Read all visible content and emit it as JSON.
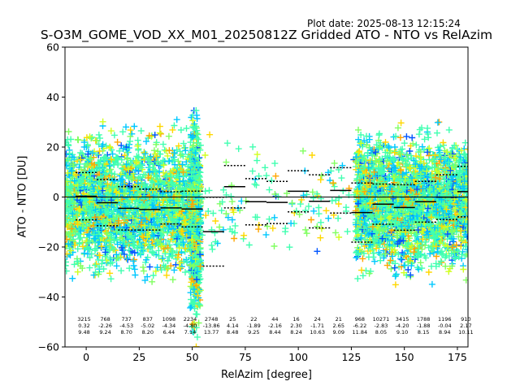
{
  "header": {
    "plot_date": "Plot date: 2025-08-13 12:15:24",
    "title": "S-O3M_GOME_VOD_XX_M01_20250812Z Gridded ATO - NTO vs RelAzim"
  },
  "chart_data": {
    "type": "scatter",
    "title": "S-O3M_GOME_VOD_XX_M01_20250812Z Gridded ATO - NTO vs RelAzim",
    "xlabel": "RelAzim [degree]",
    "ylabel": "ATO - NTO [DU]",
    "xlim": [
      -10,
      180
    ],
    "ylim": [
      -60,
      60
    ],
    "xticks": [
      0,
      25,
      50,
      75,
      100,
      125,
      150,
      175
    ],
    "yticks": [
      -60,
      -40,
      -20,
      0,
      20,
      40,
      60
    ],
    "grid": false,
    "legend": "none",
    "marker": "plus",
    "point_colors": [
      "#0055ff",
      "#00c8ff",
      "#40ffb0",
      "#80ff60",
      "#d0ff20",
      "#ffd700",
      "#ffa500"
    ],
    "bins": [
      {
        "x": 0,
        "n": "3215",
        "mean": "0.32",
        "std": "9.48"
      },
      {
        "x": 10,
        "n": "768",
        "mean": "-2.26",
        "std": "9.24"
      },
      {
        "x": 20,
        "n": "737",
        "mean": "-4.53",
        "std": "8.70"
      },
      {
        "x": 30,
        "n": "837",
        "mean": "-5.02",
        "std": "8.20"
      },
      {
        "x": 40,
        "n": "1098",
        "mean": "-4.34",
        "std": "6.44"
      },
      {
        "x": 50,
        "n": "2234",
        "mean": "-4.80",
        "std": "7.14"
      },
      {
        "x": 60,
        "n": "2748",
        "mean": "-13.86",
        "std": "13.77"
      },
      {
        "x": 70,
        "n": "25",
        "mean": "4.14",
        "std": "8.48"
      },
      {
        "x": 80,
        "n": "22",
        "mean": "-1.89",
        "std": "9.25"
      },
      {
        "x": 90,
        "n": "44",
        "mean": "-2.16",
        "std": "8.44"
      },
      {
        "x": 100,
        "n": "16",
        "mean": "2.30",
        "std": "8.24"
      },
      {
        "x": 110,
        "n": "24",
        "mean": "-1.71",
        "std": "10.63"
      },
      {
        "x": 120,
        "n": "21",
        "mean": "2.65",
        "std": "9.09"
      },
      {
        "x": 130,
        "n": "968",
        "mean": "-6.22",
        "std": "11.84"
      },
      {
        "x": 140,
        "n": "10271",
        "mean": "-2.83",
        "std": "8.05"
      },
      {
        "x": 150,
        "n": "3415",
        "mean": "-4.20",
        "std": "9.10"
      },
      {
        "x": 160,
        "n": "1788",
        "mean": "-1.88",
        "std": "8.15"
      },
      {
        "x": 170,
        "n": "1196",
        "mean": "-0.04",
        "std": "8.94"
      },
      {
        "x": 180,
        "n": "910",
        "mean": "2.17",
        "std": "10.11"
      }
    ],
    "clusters": [
      {
        "x": [
          -10,
          52
        ],
        "y_center": -3,
        "spread": 12,
        "count": 2600
      },
      {
        "x": [
          49,
          54
        ],
        "y_center": -10,
        "spread": 18,
        "count": 700
      },
      {
        "x": [
          54,
          127
        ],
        "y_center": -2,
        "spread": 10,
        "count": 140
      },
      {
        "x": [
          127,
          180
        ],
        "y_center": -2,
        "spread": 12,
        "count": 2600
      }
    ]
  }
}
